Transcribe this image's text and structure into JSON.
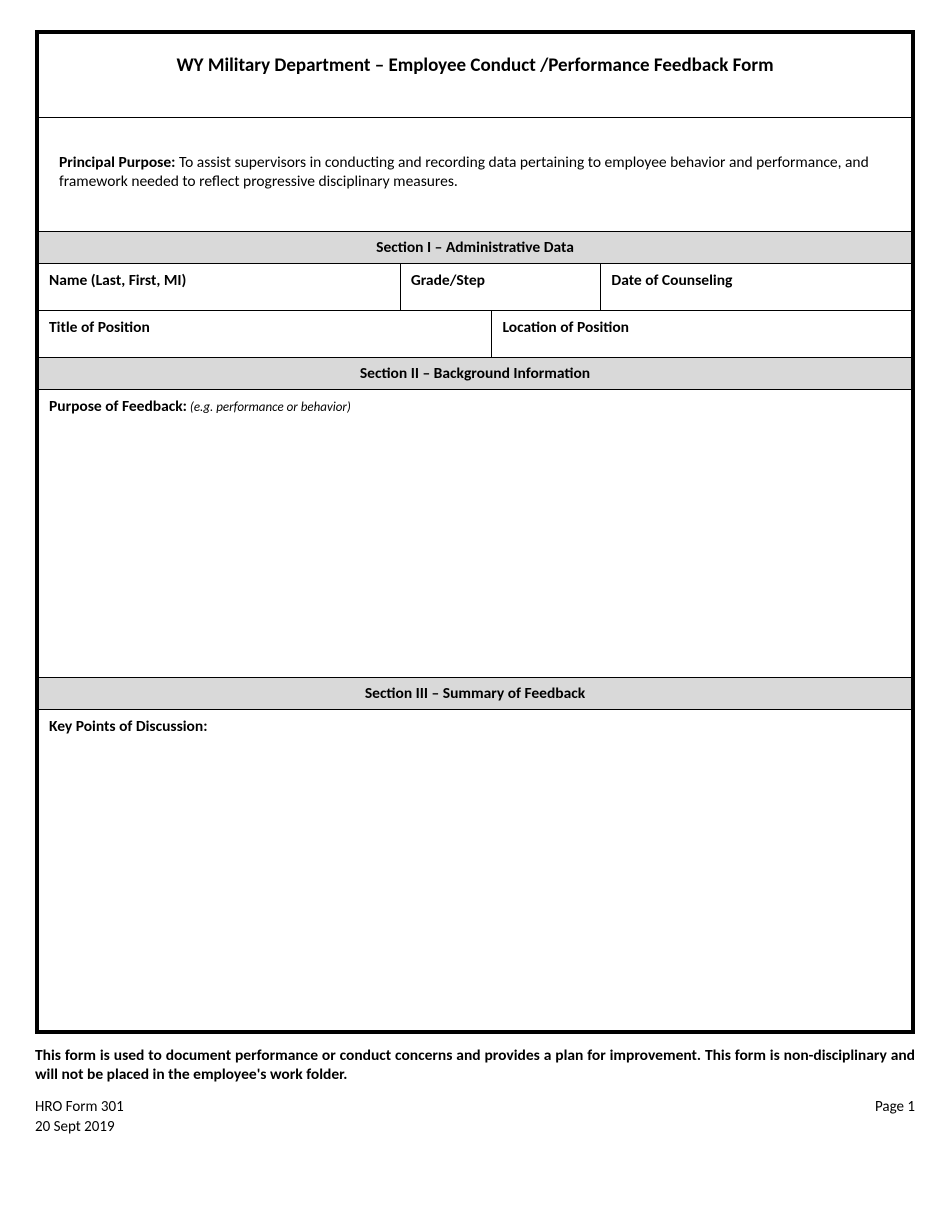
{
  "form": {
    "title": "WY Military Department – Employee Conduct /Performance Feedback Form",
    "purpose": {
      "label": "Principal Purpose:",
      "text": "  To assist supervisors in conducting and recording data pertaining to employee behavior and performance, and framework needed to reflect progressive disciplinary measures."
    },
    "section1": {
      "header": "Section I – Administrative Data",
      "name_label": "Name (Last, First, MI)",
      "grade_label": "Grade/Step",
      "date_label": "Date of Counseling",
      "title_pos_label": "Title of Position",
      "location_label": "Location of Position"
    },
    "section2": {
      "header": "Section II – Background Information",
      "purpose_label": "Purpose of Feedback:",
      "purpose_hint": "  (e.g. performance or behavior)"
    },
    "section3": {
      "header": "Section III – Summary of Feedback",
      "keypoints_label": "Key Points of Discussion:"
    },
    "disclaimer": "This form is used to document performance or conduct concerns and provides a plan for improvement.  This form is non-disciplinary and will not be placed in the employee's work folder.",
    "footer": {
      "form_id": "HRO Form 301",
      "form_date": "20 Sept 2019",
      "page": "Page 1"
    }
  },
  "colors": {
    "border": "#000000",
    "section_bg": "#d9d9d9",
    "background": "#ffffff",
    "text": "#000000"
  }
}
